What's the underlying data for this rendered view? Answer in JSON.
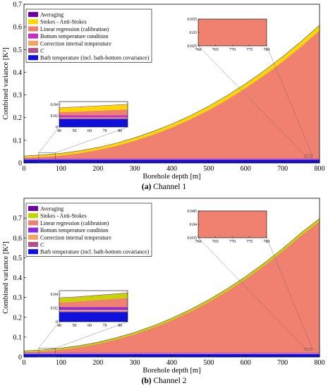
{
  "chart_data": [
    {
      "type": "area",
      "panel_tag": "(a)",
      "caption_title": "Channel 1",
      "xlabel": "Borehole depth [m]",
      "ylabel": "Combined variance [K²]",
      "xlim": [
        0,
        800
      ],
      "ylim": [
        0,
        0.7
      ],
      "xticks": [
        0,
        100,
        200,
        300,
        400,
        500,
        600,
        700,
        800
      ],
      "yticks": [
        0,
        0.1,
        0.2,
        0.3,
        0.4,
        0.5,
        0.6,
        0.7
      ],
      "legend_position": "top-left",
      "x": [
        0,
        50,
        100,
        150,
        200,
        250,
        300,
        350,
        400,
        450,
        500,
        550,
        600,
        650,
        700,
        750,
        800
      ],
      "series": [
        {
          "name": "Bath temperature (incl. bath-bottom covariance)",
          "color": "#1010dd",
          "values": [
            0.014,
            0.014,
            0.014,
            0.014,
            0.014,
            0.014,
            0.014,
            0.014,
            0.014,
            0.014,
            0.014,
            0.014,
            0.014,
            0.014,
            0.014,
            0.014,
            0.014
          ]
        },
        {
          "name": "C",
          "color": "#b3508a",
          "values": [
            0.002,
            0.002,
            0.002,
            0.002,
            0.002,
            0.002,
            0.002,
            0.002,
            0.002,
            0.002,
            0.002,
            0.002,
            0.002,
            0.002,
            0.002,
            0.002,
            0.002
          ]
        },
        {
          "name": "Correction internal temperature",
          "color": "#f4a460",
          "values": [
            0.001,
            0.001,
            0.001,
            0.001,
            0.001,
            0.001,
            0.001,
            0.001,
            0.001,
            0.001,
            0.001,
            0.001,
            0.001,
            0.001,
            0.001,
            0.001,
            0.001
          ]
        },
        {
          "name": "Bottom temperature condition",
          "color": "#c030c0",
          "values": [
            0.004,
            0.004,
            0.004,
            0.004,
            0.004,
            0.004,
            0.004,
            0.004,
            0.004,
            0.004,
            0.004,
            0.004,
            0.004,
            0.004,
            0.004,
            0.004,
            0.004
          ]
        },
        {
          "name": "Linear regression (calibration)",
          "color": "#f08070",
          "values": [
            0.002,
            0.006,
            0.012,
            0.022,
            0.036,
            0.054,
            0.077,
            0.104,
            0.135,
            0.171,
            0.212,
            0.258,
            0.309,
            0.365,
            0.426,
            0.492,
            0.563
          ]
        },
        {
          "name": "Stokes - Anti-Stokes",
          "color": "#ffd700",
          "values": [
            0.007,
            0.008,
            0.009,
            0.01,
            0.011,
            0.012,
            0.013,
            0.014,
            0.015,
            0.016,
            0.017,
            0.018,
            0.019,
            0.02,
            0.021,
            0.022,
            0.023
          ]
        },
        {
          "name": "Averaging",
          "color": "#7000a0",
          "values": [
            0.0005,
            0.0005,
            0.0005,
            0.0005,
            0.0005,
            0.0005,
            0.0005,
            0.0005,
            0.0005,
            0.0005,
            0.0005,
            0.0005,
            0.0005,
            0.0005,
            0.0005,
            0.0005,
            0.0005
          ]
        }
      ],
      "insets": [
        {
          "xlim": [
            40,
            85
          ],
          "ylim": [
            0,
            0.045
          ],
          "xticks": [
            40,
            50,
            60,
            70,
            80
          ],
          "yticks": [
            0,
            0.02,
            0.04
          ]
        },
        {
          "xlim": [
            760,
            780
          ],
          "ylim": [
            0.025,
            0.035
          ],
          "xticks": [
            760,
            765,
            770,
            775,
            780
          ],
          "yticks": [
            0.025,
            0.03,
            0.035
          ]
        }
      ]
    },
    {
      "type": "area",
      "panel_tag": "(b)",
      "caption_title": "Channel 2",
      "xlabel": "Borehole depth [m]",
      "ylabel": "Combined variance [K²]",
      "xlim": [
        0,
        800
      ],
      "ylim": [
        0,
        0.8
      ],
      "xticks": [
        0,
        100,
        200,
        300,
        400,
        500,
        600,
        700,
        800
      ],
      "yticks": [
        0,
        0.1,
        0.2,
        0.3,
        0.4,
        0.5,
        0.6,
        0.7
      ],
      "legend_position": "top-left",
      "x": [
        0,
        50,
        100,
        150,
        200,
        250,
        300,
        350,
        400,
        450,
        500,
        550,
        600,
        650,
        700,
        750,
        800
      ],
      "series": [
        {
          "name": "Bath temperature (incl. bath-bottom covariance)",
          "color": "#1010dd",
          "values": [
            0.014,
            0.014,
            0.014,
            0.014,
            0.014,
            0.014,
            0.014,
            0.014,
            0.014,
            0.014,
            0.014,
            0.014,
            0.014,
            0.014,
            0.014,
            0.014,
            0.014
          ]
        },
        {
          "name": "C",
          "color": "#b3508a",
          "values": [
            0.001,
            0.001,
            0.001,
            0.001,
            0.001,
            0.001,
            0.001,
            0.001,
            0.001,
            0.001,
            0.001,
            0.001,
            0.001,
            0.001,
            0.001,
            0.001,
            0.001
          ]
        },
        {
          "name": "Correction internal temperature",
          "color": "#f4a460",
          "values": [
            0.002,
            0.002,
            0.002,
            0.002,
            0.002,
            0.002,
            0.002,
            0.002,
            0.002,
            0.002,
            0.002,
            0.002,
            0.002,
            0.002,
            0.002,
            0.002,
            0.002
          ]
        },
        {
          "name": "Bottom temperature condition",
          "color": "#8a2be2",
          "values": [
            0.004,
            0.004,
            0.004,
            0.004,
            0.004,
            0.004,
            0.004,
            0.004,
            0.004,
            0.004,
            0.004,
            0.004,
            0.004,
            0.004,
            0.004,
            0.004,
            0.004
          ]
        },
        {
          "name": "Linear regression (calibration)",
          "color": "#f08070",
          "values": [
            0.003,
            0.008,
            0.016,
            0.028,
            0.045,
            0.067,
            0.094,
            0.126,
            0.164,
            0.207,
            0.256,
            0.311,
            0.372,
            0.439,
            0.512,
            0.591,
            0.662
          ]
        },
        {
          "name": "Stokes - Anti-Stokes",
          "color": "#c8d400",
          "values": [
            0.006,
            0.0065,
            0.007,
            0.0075,
            0.008,
            0.0085,
            0.009,
            0.0095,
            0.01,
            0.0105,
            0.011,
            0.0115,
            0.012,
            0.0125,
            0.013,
            0.0135,
            0.014
          ]
        },
        {
          "name": "Averaging",
          "color": "#7000a0",
          "values": [
            0.0005,
            0.0005,
            0.0005,
            0.0005,
            0.0005,
            0.0005,
            0.0005,
            0.0005,
            0.0005,
            0.0005,
            0.0005,
            0.0005,
            0.0005,
            0.0005,
            0.0005,
            0.0005,
            0.0005
          ]
        }
      ],
      "insets": [
        {
          "xlim": [
            40,
            85
          ],
          "ylim": [
            0,
            0.045
          ],
          "xticks": [
            40,
            50,
            60,
            70,
            80
          ],
          "yticks": [
            0,
            0.02,
            0.04
          ]
        },
        {
          "xlim": [
            760,
            780
          ],
          "ylim": [
            0.035,
            0.045
          ],
          "xticks": [
            760,
            765,
            770,
            775,
            780
          ],
          "yticks": [
            0.035,
            0.04,
            0.045
          ]
        }
      ]
    }
  ]
}
